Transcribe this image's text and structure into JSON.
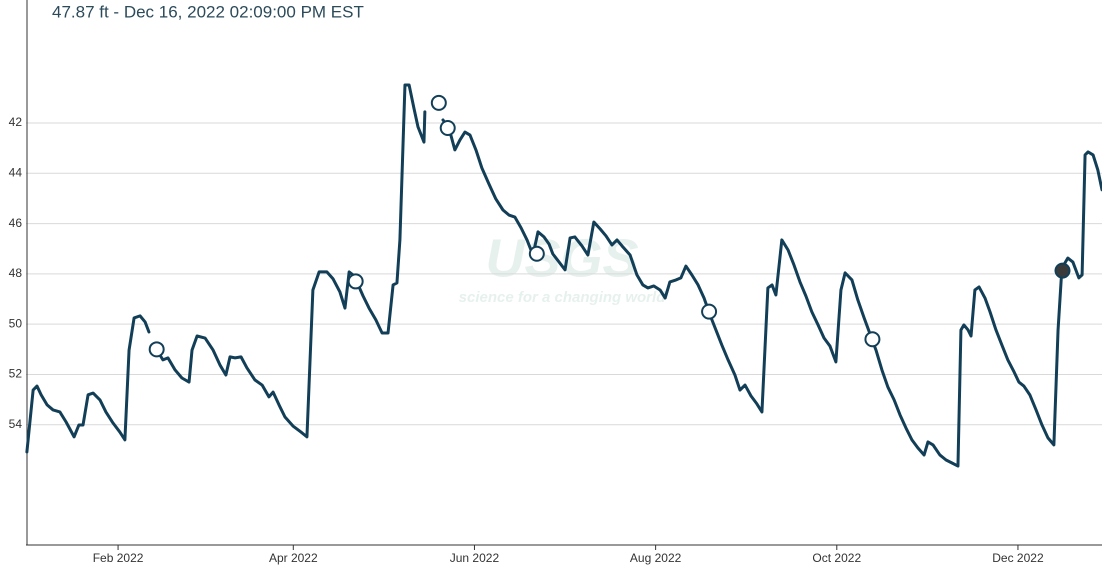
{
  "chart_data": {
    "type": "line",
    "title": "47.87 ft - Dec 16, 2022 02:09:00 PM EST",
    "watermark": {
      "logo": "USGS",
      "tagline": "science for a changing world"
    },
    "y_inverted": true,
    "grid": true,
    "xlim": [
      0,
      362.3
    ],
    "ylim": [
      37.11,
      58.78
    ],
    "xticks": [
      {
        "value": 31,
        "label": "Feb 2022"
      },
      {
        "value": 90,
        "label": "Apr 2022"
      },
      {
        "value": 151,
        "label": "Jun 2022"
      },
      {
        "value": 212,
        "label": "Aug 2022"
      },
      {
        "value": 273,
        "label": "Oct 2022"
      },
      {
        "value": 334,
        "label": "Dec 2022"
      }
    ],
    "yticks": [
      42,
      44,
      46,
      48,
      50,
      52,
      54
    ],
    "series": [
      {
        "color": "#123f57",
        "x": [
          0.3,
          2.4,
          3.7,
          5.1,
          7.1,
          9.1,
          11.4,
          13.5,
          16.2,
          17.8,
          19.2,
          20.9,
          22.6,
          24.9,
          26.9,
          29.3,
          31.6,
          33.3,
          34.7,
          36.4,
          38.4,
          40.1,
          41.4,
          null,
          44.1,
          46.1,
          47.8,
          50.2,
          52.5,
          54.9,
          55.9,
          57.6,
          60.3,
          63.0,
          65.3,
          67.3,
          68.7,
          70.4,
          72.4,
          74.4,
          77.1,
          79.5,
          81.8,
          83.2,
          85.2,
          87.2,
          89.9,
          92.6,
          94.6,
          96.6,
          98.7,
          101.3,
          103.4,
          105.7,
          107.4,
          108.8,
          110.1,
          111.4,
          113.5,
          115.5,
          117.8,
          119.9,
          121.9,
          123.6,
          124.9,
          125.9,
          127.6,
          129.0,
          130.6,
          132.0,
          134.0,
          134.3,
          null,
          140.4,
          142.4,
          144.4,
          146.1,
          147.8,
          149.5,
          151.5,
          153.5,
          155.9,
          158.2,
          160.6,
          162.6,
          164.6,
          166.7,
          168.7,
          170.7,
          172.4,
          174.4,
          176.1,
          177.4,
          179.5,
          181.5,
          183.2,
          184.8,
          187.2,
          189.2,
          191.2,
          193.3,
          195.3,
          197.3,
          199.0,
          200.7,
          203.4,
          205.7,
          207.7,
          209.4,
          211.4,
          213.5,
          215.2,
          216.8,
          218.9,
          220.5,
          222.2,
          224.2,
          226.3,
          228.3,
          230.3,
          232.3,
          234.3,
          236.4,
          238.7,
          240.4,
          242.1,
          244.1,
          246.1,
          247.8,
          249.8,
          251.2,
          252.5,
          254.5,
          256.6,
          258.6,
          260.6,
          262.6,
          264.6,
          266.7,
          268.7,
          270.7,
          272.7,
          274.4,
          275.8,
          278.1,
          280.1,
          282.2,
          284.2,
          286.2,
          288.2,
          290.2,
          292.3,
          294.3,
          296.3,
          298.3,
          300.3,
          302.4,
          303.7,
          305.4,
          307.7,
          309.8,
          311.8,
          313.8,
          314.8,
          315.8,
          317.2,
          318.2,
          319.5,
          320.9,
          322.9,
          324.6,
          326.6,
          328.6,
          330.6,
          332.7,
          334.3,
          336.0,
          338.0,
          340.1,
          342.1,
          344.1,
          346.1,
          347.5,
          348.8,
          350.8,
          352.5,
          354.5,
          355.6,
          356.6,
          357.6,
          359.3,
          360.9,
          362.3
        ],
        "values": [
          55.08,
          52.62,
          52.46,
          52.81,
          53.21,
          53.41,
          53.49,
          53.89,
          54.48,
          54.01,
          54.01,
          52.81,
          52.74,
          53.01,
          53.49,
          53.93,
          54.29,
          54.6,
          51.03,
          49.75,
          49.67,
          49.91,
          50.31,
          null,
          51.03,
          51.42,
          51.34,
          51.82,
          52.14,
          52.3,
          51.03,
          50.47,
          50.55,
          51.03,
          51.62,
          52.02,
          51.3,
          51.34,
          51.3,
          51.74,
          52.22,
          52.42,
          52.89,
          52.7,
          53.21,
          53.69,
          54.05,
          54.29,
          54.48,
          48.64,
          47.92,
          47.92,
          48.2,
          48.72,
          49.36,
          47.92,
          48.04,
          48.32,
          48.88,
          49.36,
          49.83,
          50.35,
          50.35,
          48.44,
          48.36,
          46.65,
          40.49,
          40.49,
          41.4,
          42.16,
          42.76,
          41.56,
          null,
          41.88,
          42.2,
          43.07,
          42.68,
          42.36,
          42.48,
          43.07,
          43.79,
          44.43,
          45.02,
          45.46,
          45.66,
          45.74,
          46.17,
          46.65,
          47.25,
          46.33,
          46.53,
          46.81,
          47.21,
          47.53,
          47.84,
          46.57,
          46.53,
          46.89,
          47.25,
          45.94,
          46.21,
          46.49,
          46.85,
          46.65,
          46.89,
          47.25,
          48.04,
          48.44,
          48.56,
          48.48,
          48.64,
          48.96,
          48.32,
          48.24,
          48.16,
          47.69,
          48.04,
          48.44,
          48.96,
          49.63,
          50.23,
          50.83,
          51.42,
          52.02,
          52.62,
          52.42,
          52.85,
          53.17,
          53.49,
          48.56,
          48.44,
          48.84,
          46.65,
          47.05,
          47.65,
          48.32,
          48.88,
          49.51,
          50.03,
          50.55,
          50.87,
          51.5,
          48.64,
          47.96,
          48.24,
          49.04,
          49.75,
          50.39,
          51.03,
          51.82,
          52.5,
          53.01,
          53.61,
          54.13,
          54.6,
          54.92,
          55.2,
          54.68,
          54.8,
          55.2,
          55.4,
          55.52,
          55.64,
          50.23,
          50.03,
          50.23,
          50.47,
          48.64,
          48.52,
          48.96,
          49.51,
          50.23,
          50.83,
          51.42,
          51.9,
          52.3,
          52.46,
          52.81,
          53.41,
          54.01,
          54.52,
          54.8,
          50.23,
          47.77,
          47.37,
          47.53,
          48.16,
          48.04,
          43.27,
          43.15,
          43.27,
          43.87,
          44.66
        ]
      }
    ],
    "points": {
      "color": "#123f57",
      "x": [
        44,
        111,
        139,
        142,
        172,
        230,
        285,
        349
      ],
      "values": [
        51.0,
        48.3,
        41.2,
        42.2,
        47.2,
        49.5,
        50.6,
        47.87
      ],
      "filled": [
        false,
        false,
        false,
        false,
        false,
        false,
        false,
        true
      ]
    }
  }
}
